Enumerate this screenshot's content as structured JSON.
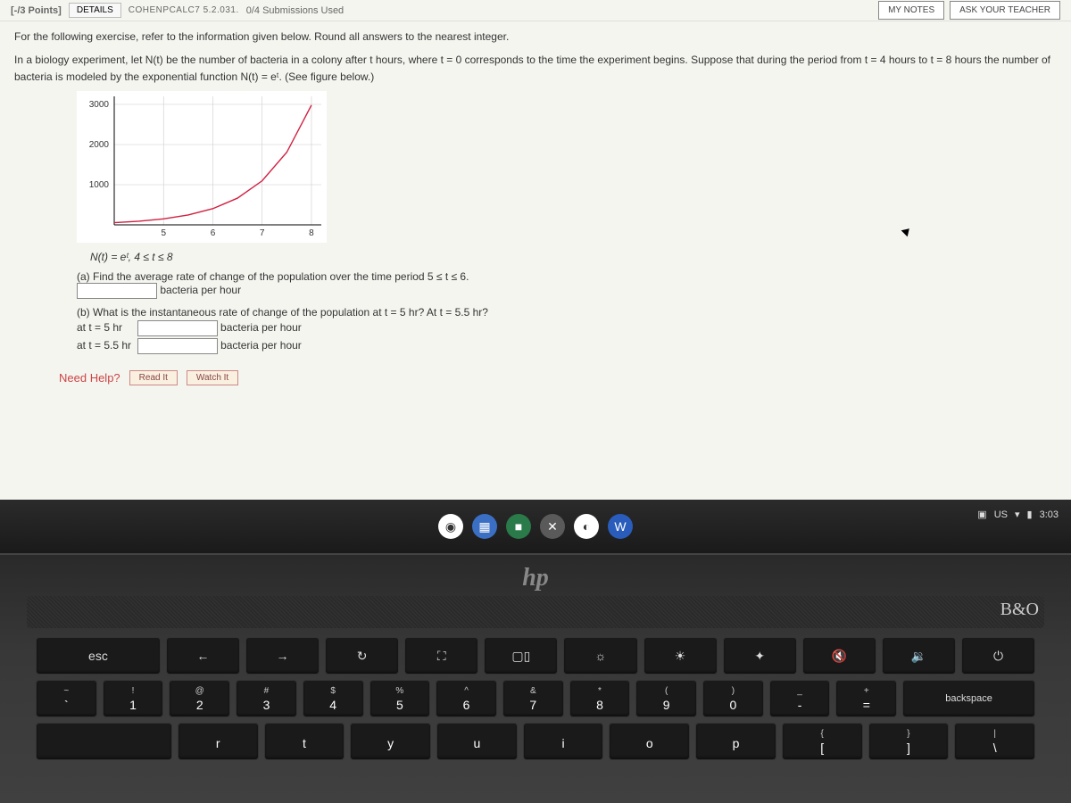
{
  "topbar": {
    "points": "[-/3 Points]",
    "details": "DETAILS",
    "code": "COHENPCALC7 5.2.031.",
    "submissions": "0/4 Submissions Used",
    "my_notes": "MY NOTES",
    "ask_teacher": "ASK YOUR TEACHER"
  },
  "instruction": "For the following exercise, refer to the information given below. Round all answers to the nearest integer.",
  "problem": "In a biology experiment, let N(t) be the number of bacteria in a colony after t hours, where t = 0 corresponds to the time the experiment begins. Suppose that during the period from t = 4 hours to t = 8 hours the number of bacteria is modeled by the exponential function N(t) = eᵗ. (See figure below.)",
  "equation": "N(t) = eᵗ, 4 ≤ t ≤ 8",
  "chart": {
    "type": "line",
    "xlim": [
      4,
      8.2
    ],
    "ylim": [
      0,
      3200
    ],
    "xtick_values": [
      5,
      6,
      7,
      8
    ],
    "ytick_values": [
      1000,
      2000,
      3000
    ],
    "background_color": "#ffffff",
    "grid_color": "#cccccc",
    "axis_color": "#000000",
    "line_color": "#d02040",
    "line_width": 1.4,
    "data_points": [
      {
        "t": 4.0,
        "N": 55
      },
      {
        "t": 4.5,
        "N": 90
      },
      {
        "t": 5.0,
        "N": 148
      },
      {
        "t": 5.5,
        "N": 245
      },
      {
        "t": 6.0,
        "N": 403
      },
      {
        "t": 6.5,
        "N": 665
      },
      {
        "t": 7.0,
        "N": 1097
      },
      {
        "t": 7.5,
        "N": 1808
      },
      {
        "t": 8.0,
        "N": 2981
      }
    ],
    "tick_fontsize": 10
  },
  "parts": {
    "a": {
      "prompt": "(a) Find the average rate of change of the population over the time period  5 ≤ t ≤ 6.",
      "unit": "bacteria per hour"
    },
    "b": {
      "prompt": "(b) What is the instantaneous rate of change of the population at t = 5 hr? At t = 5.5 hr?",
      "row1_label": "at t = 5 hr",
      "row2_label": "at t = 5.5 hr",
      "unit": "bacteria per hour"
    }
  },
  "help": {
    "label": "Need Help?",
    "read": "Read It",
    "watch": "Watch It"
  },
  "shelf": {
    "icons": [
      {
        "name": "chrome-icon",
        "bg": "#ffffff",
        "glyph": "◉"
      },
      {
        "name": "apps-icon",
        "bg": "#3b6fc4",
        "glyph": "▦"
      },
      {
        "name": "video-icon",
        "bg": "#2a7a4a",
        "glyph": "■"
      },
      {
        "name": "close-icon",
        "bg": "#5a5a5a",
        "glyph": "✕"
      },
      {
        "name": "shield-icon",
        "bg": "#ffffff",
        "glyph": "◐"
      },
      {
        "name": "word-icon",
        "bg": "#2a5dbb",
        "glyph": "W"
      }
    ]
  },
  "tray": {
    "lang": "US",
    "wifi": "▾",
    "battery": "▮",
    "time": "3:03"
  },
  "hp": "hp",
  "bo": "B&O",
  "keyboard": {
    "row0": [
      {
        "label": "esc",
        "w": "wide"
      },
      {
        "label": "←"
      },
      {
        "label": "→"
      },
      {
        "label": "↻"
      },
      {
        "label": "⛶"
      },
      {
        "label": "▢▯"
      },
      {
        "label": "☼"
      },
      {
        "label": "☀"
      },
      {
        "label": "✦"
      },
      {
        "label": "🔇"
      },
      {
        "label": "🔉"
      },
      {
        "label": "⏻"
      }
    ],
    "row1": [
      {
        "upper": "~",
        "lower": "`"
      },
      {
        "upper": "!",
        "lower": "1"
      },
      {
        "upper": "@",
        "lower": "2"
      },
      {
        "upper": "#",
        "lower": "3"
      },
      {
        "upper": "$",
        "lower": "4"
      },
      {
        "upper": "%",
        "lower": "5"
      },
      {
        "upper": "^",
        "lower": "6"
      },
      {
        "upper": "&",
        "lower": "7"
      },
      {
        "upper": "*",
        "lower": "8"
      },
      {
        "upper": "(",
        "lower": "9"
      },
      {
        "upper": ")",
        "lower": "0"
      },
      {
        "upper": "_",
        "lower": "-"
      },
      {
        "upper": "+",
        "lower": "="
      },
      {
        "label": "backspace",
        "w": "xwide"
      }
    ],
    "row2": [
      {
        "label": "",
        "w": "wide"
      },
      {
        "lower": "r"
      },
      {
        "lower": "t"
      },
      {
        "lower": "y"
      },
      {
        "lower": "u"
      },
      {
        "lower": "i"
      },
      {
        "lower": "o"
      },
      {
        "lower": "p"
      },
      {
        "upper": "{",
        "lower": "["
      },
      {
        "upper": "}",
        "lower": "]"
      },
      {
        "upper": "|",
        "lower": "\\"
      }
    ]
  }
}
